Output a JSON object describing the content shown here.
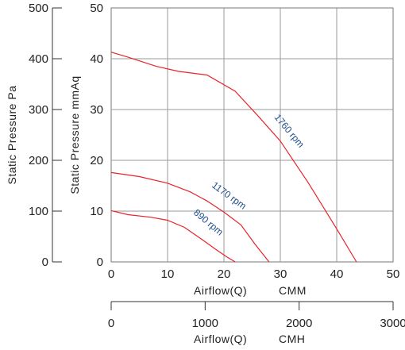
{
  "chart_data": {
    "type": "line",
    "x": {
      "label_primary": "Airflow(Q)",
      "unit_primary": "CMM",
      "range_cmm": [
        0,
        50
      ],
      "ticks_cmm": [
        0,
        10,
        20,
        30,
        40,
        50
      ],
      "label_secondary": "Airflow(Q)",
      "unit_secondary": "CMH",
      "range_cmh": [
        0,
        3000
      ],
      "ticks_cmh": [
        0,
        1000,
        2000,
        3000
      ]
    },
    "y_left": {
      "label": "Static  Pressure  Pa",
      "range": [
        0,
        500
      ],
      "ticks": [
        0,
        100,
        200,
        300,
        400,
        500
      ]
    },
    "y_inner": {
      "label": "Static  Pressure  mmAq",
      "range": [
        0,
        50
      ],
      "ticks": [
        0,
        10,
        20,
        30,
        40,
        50
      ]
    },
    "grid": true,
    "series": [
      {
        "name": "1760 rpm",
        "color": "#e8232a",
        "points": [
          [
            0,
            41.3
          ],
          [
            3,
            40.3
          ],
          [
            8,
            38.5
          ],
          [
            12,
            37.5
          ],
          [
            17,
            36.8
          ],
          [
            22,
            33.6
          ],
          [
            26,
            28.8
          ],
          [
            30,
            23.8
          ],
          [
            35,
            15.5
          ],
          [
            40,
            6.5
          ],
          [
            43.5,
            0
          ]
        ]
      },
      {
        "name": "1170 rpm",
        "color": "#e8232a",
        "points": [
          [
            0,
            17.6
          ],
          [
            5,
            16.8
          ],
          [
            10,
            15.5
          ],
          [
            14,
            13.8
          ],
          [
            17,
            12.0
          ],
          [
            20,
            9.8
          ],
          [
            23,
            7.3
          ],
          [
            25.5,
            3.5
          ],
          [
            28,
            0
          ]
        ]
      },
      {
        "name": "890 rpm",
        "color": "#e8232a",
        "points": [
          [
            0,
            10.1
          ],
          [
            3,
            9.3
          ],
          [
            7,
            8.8
          ],
          [
            10,
            8.2
          ],
          [
            13,
            6.8
          ],
          [
            16,
            4.5
          ],
          [
            18.5,
            2.5
          ],
          [
            20.5,
            1.0
          ],
          [
            22,
            0
          ]
        ]
      }
    ]
  }
}
